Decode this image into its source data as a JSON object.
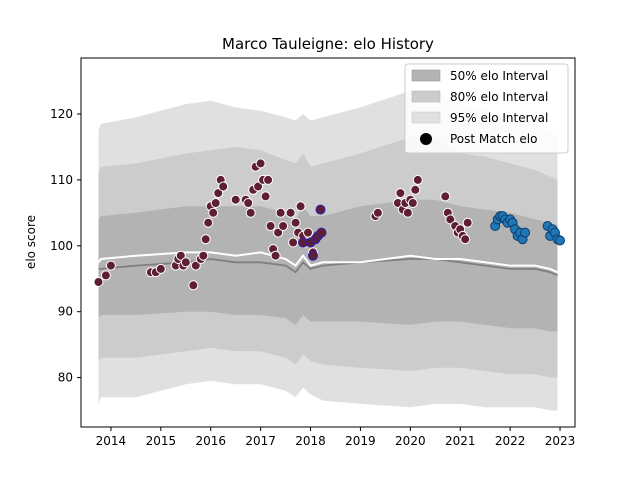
{
  "chart_data": {
    "type": "scatter",
    "title": "Marco Tauleigne: elo History",
    "xlabel": "",
    "ylabel": "elo score",
    "xlim": [
      2013.4,
      2023.3
    ],
    "ylim": [
      72.5,
      128.5
    ],
    "x_ticks": [
      2014,
      2015,
      2016,
      2017,
      2018,
      2019,
      2020,
      2021,
      2022,
      2023
    ],
    "y_ticks": [
      80,
      90,
      100,
      110,
      120
    ],
    "grid": false,
    "legend": {
      "placement": "top-right",
      "entries": [
        "50% elo Interval",
        "80% elo Interval",
        "95% elo Interval",
        "Post Match elo"
      ]
    },
    "colors": {
      "band50": "#b3b3b3",
      "band80": "#cccccc",
      "band95": "#e0e0e0",
      "median_line": "#7f7f7f",
      "mean_line": "#ffffff",
      "early_points": "#5e1f32",
      "early_point_edge": "#ffffff",
      "highlight_edge": "#2a1fb8",
      "recent_points": "#1f77b4",
      "recent_point_edge": "#0d3c6e"
    },
    "bands": {
      "x": [
        2013.75,
        2013.8,
        2014.5,
        2015.5,
        2016.0,
        2016.5,
        2017.0,
        2017.5,
        2017.7,
        2017.85,
        2018.0,
        2018.25,
        2019.0,
        2020.0,
        2020.5,
        2021.0,
        2021.5,
        2022.0,
        2022.5,
        2022.8,
        2022.95
      ],
      "p95_upper": [
        117.5,
        118.5,
        119.5,
        121.5,
        122.0,
        121.0,
        120.5,
        119.5,
        119.0,
        120.0,
        119.0,
        119.5,
        121.0,
        123.5,
        123.5,
        121.5,
        120.5,
        119.5,
        118.5,
        117.5,
        116.5
      ],
      "p80_upper": [
        111.0,
        112.0,
        112.5,
        114.0,
        114.5,
        115.0,
        114.5,
        113.0,
        112.5,
        114.0,
        112.0,
        112.5,
        114.0,
        116.5,
        116.5,
        114.0,
        113.5,
        112.5,
        111.5,
        110.5,
        110.0
      ],
      "p50_upper": [
        104.0,
        104.5,
        105.0,
        106.0,
        106.0,
        106.0,
        106.0,
        105.0,
        104.0,
        106.0,
        104.5,
        104.5,
        106.0,
        107.0,
        107.0,
        106.0,
        105.5,
        105.0,
        104.0,
        103.5,
        103.0
      ],
      "median": [
        96.5,
        96.5,
        97.0,
        97.5,
        98.0,
        97.5,
        97.5,
        97.0,
        96.0,
        97.5,
        96.5,
        97.0,
        97.5,
        98.0,
        98.0,
        97.5,
        97.0,
        96.5,
        96.5,
        96.0,
        95.5
      ],
      "mean": [
        97.5,
        98.0,
        98.5,
        99.0,
        99.0,
        98.5,
        99.0,
        98.0,
        97.0,
        98.5,
        97.0,
        97.5,
        97.5,
        98.5,
        98.0,
        98.0,
        97.5,
        97.0,
        97.0,
        96.5,
        96.0
      ],
      "p50_lower": [
        89.0,
        89.5,
        89.5,
        90.0,
        90.0,
        89.5,
        89.5,
        89.0,
        88.0,
        89.5,
        88.5,
        88.5,
        88.5,
        88.0,
        88.5,
        88.5,
        88.0,
        87.5,
        87.5,
        87.0,
        87.0
      ],
      "p80_lower": [
        82.5,
        83.0,
        83.0,
        84.0,
        84.5,
        84.0,
        84.0,
        83.0,
        82.0,
        83.5,
        82.5,
        82.0,
        81.5,
        81.0,
        81.5,
        81.5,
        81.0,
        80.5,
        80.5,
        80.0,
        80.0
      ],
      "p95_lower": [
        76.0,
        77.0,
        77.0,
        79.0,
        79.5,
        79.0,
        79.0,
        78.0,
        77.0,
        78.5,
        77.5,
        76.5,
        76.0,
        75.5,
        76.0,
        76.0,
        75.5,
        75.5,
        75.5,
        75.0,
        75.0
      ]
    },
    "series": [
      {
        "name": "Post Match elo",
        "color": "#5e1f32",
        "x": [
          2013.75,
          2013.9,
          2014.0,
          2014.8,
          2014.9,
          2015.0,
          2015.3,
          2015.35,
          2015.4,
          2015.45,
          2015.5,
          2015.65,
          2015.7,
          2015.8,
          2015.85,
          2015.9,
          2015.95,
          2016.0,
          2016.05,
          2016.1,
          2016.15,
          2016.2,
          2016.25,
          2016.5,
          2016.7,
          2016.75,
          2016.8,
          2016.85,
          2016.9,
          2016.95,
          2017.0,
          2017.05,
          2017.1,
          2017.15,
          2017.2,
          2017.25,
          2017.3,
          2017.35,
          2017.4,
          2017.45,
          2017.6,
          2017.65,
          2017.7,
          2017.75,
          2017.8,
          2017.85,
          2017.9,
          2017.95,
          2018.05,
          2018.1,
          2019.3,
          2019.35,
          2019.75,
          2019.8,
          2019.85,
          2019.9,
          2019.95,
          2020.0,
          2020.05,
          2020.1,
          2020.15,
          2020.7,
          2020.75,
          2020.8,
          2020.9,
          2020.95,
          2021.0,
          2021.05,
          2021.1,
          2021.15
        ],
        "y": [
          94.5,
          95.5,
          97.0,
          96.0,
          96.0,
          96.5,
          97.0,
          98.0,
          98.5,
          97.0,
          97.5,
          94.0,
          97.0,
          98.0,
          98.5,
          101.0,
          103.5,
          106.0,
          105.0,
          106.5,
          108.0,
          110.0,
          109.0,
          107.0,
          107.0,
          106.5,
          105.0,
          108.5,
          112.0,
          109.0,
          112.5,
          110.0,
          107.5,
          110.0,
          103.0,
          99.5,
          98.5,
          102.0,
          105.0,
          103.0,
          105.0,
          100.5,
          103.5,
          102.0,
          106.0,
          101.5,
          100.5,
          102.0,
          99.0,
          101.0,
          104.5,
          105.0,
          106.5,
          108.0,
          105.5,
          106.5,
          105.0,
          107.0,
          106.5,
          108.5,
          110.0,
          107.5,
          105.0,
          104.0,
          103.0,
          102.0,
          102.5,
          101.5,
          101.0,
          103.5
        ]
      },
      {
        "name": "Post Match elo (highlighted)",
        "color": "#5e1f32",
        "x": [
          2017.85,
          2018.0,
          2018.05,
          2018.1,
          2018.15,
          2018.2,
          2018.22
        ],
        "y": [
          100.5,
          100.5,
          98.5,
          101.0,
          101.5,
          105.5,
          102.0
        ]
      },
      {
        "name": "Post Match elo (recent)",
        "color": "#1f77b4",
        "x": [
          2021.7,
          2021.75,
          2021.8,
          2021.85,
          2021.9,
          2021.95,
          2022.0,
          2022.05,
          2022.1,
          2022.15,
          2022.2,
          2022.25,
          2022.3,
          2022.75,
          2022.8,
          2022.85,
          2022.9,
          2022.95,
          2023.0
        ],
        "y": [
          103.0,
          104.0,
          104.5,
          104.5,
          104.0,
          103.5,
          104.0,
          103.5,
          102.5,
          101.5,
          102.0,
          101.0,
          102.0,
          103.0,
          101.5,
          102.5,
          102.0,
          101.0,
          100.8
        ]
      }
    ]
  }
}
